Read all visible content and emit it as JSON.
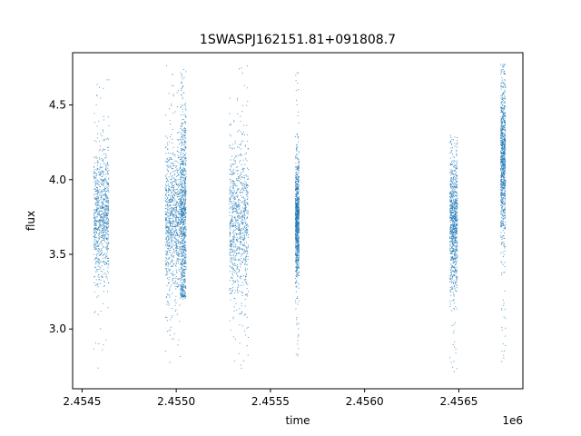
{
  "chart_data": {
    "type": "scatter",
    "title": "1SWASPJ162151.81+091808.7",
    "xlabel": "time",
    "ylabel": "flux",
    "x_offset_label": "1e6",
    "xlim": [
      2454450,
      2456840
    ],
    "ylim": [
      2.6,
      4.85
    ],
    "xticks": [
      2454500,
      2455000,
      2455500,
      2456000,
      2456500
    ],
    "xtick_labels": [
      "2.4545",
      "2.4550",
      "2.4555",
      "2.4560",
      "2.4565"
    ],
    "yticks": [
      3.0,
      3.5,
      4.0,
      4.5
    ],
    "ytick_labels": [
      "3.0",
      "3.5",
      "4.0",
      "4.5"
    ],
    "grid": false,
    "legend": "none",
    "series_color": "#1f77b4",
    "clusters": [
      {
        "x_start": 2454560,
        "x_end": 2454640,
        "flux_center": 3.75,
        "flux_spread": 0.22,
        "flux_min": 2.7,
        "flux_max": 4.7
      },
      {
        "x_start": 2454940,
        "x_end": 2455020,
        "flux_center": 3.72,
        "flux_spread": 0.25,
        "flux_min": 2.68,
        "flux_max": 4.77
      },
      {
        "x_start": 2455020,
        "x_end": 2455050,
        "flux_center": 3.75,
        "flux_spread": 0.35,
        "flux_min": 3.2,
        "flux_max": 4.76
      },
      {
        "x_start": 2455280,
        "x_end": 2455380,
        "flux_center": 3.72,
        "flux_spread": 0.26,
        "flux_min": 2.68,
        "flux_max": 4.77
      },
      {
        "x_start": 2455630,
        "x_end": 2455650,
        "flux_center": 3.72,
        "flux_spread": 0.2,
        "flux_min": 2.8,
        "flux_max": 4.78
      },
      {
        "x_start": 2456450,
        "x_end": 2456490,
        "flux_center": 3.72,
        "flux_spread": 0.22,
        "flux_min": 2.7,
        "flux_max": 4.3
      },
      {
        "x_start": 2456720,
        "x_end": 2456745,
        "flux_center": 4.15,
        "flux_spread": 0.25,
        "flux_min": 2.75,
        "flux_max": 4.78
      }
    ]
  }
}
